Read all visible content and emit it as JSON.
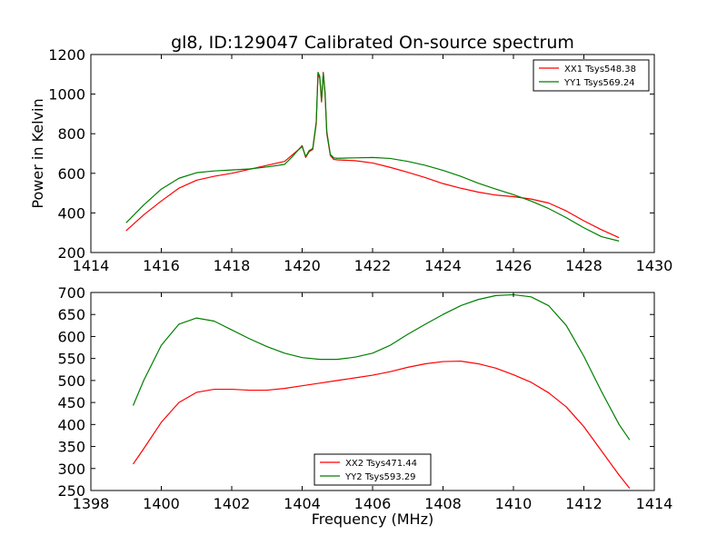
{
  "title": "gl8, ID:129047 Calibrated On-source spectrum",
  "colors": {
    "red": "#ff0000",
    "green": "#007f00"
  },
  "chart_data": [
    {
      "type": "line",
      "ylabel": "Power in Kelvin",
      "xlim": [
        1414,
        1430
      ],
      "ylim": [
        200,
        1200
      ],
      "xticks": [
        1414,
        1416,
        1418,
        1420,
        1422,
        1424,
        1426,
        1428,
        1430
      ],
      "yticks": [
        200,
        400,
        600,
        800,
        1000,
        1200
      ],
      "legend": "top-right",
      "series": [
        {
          "name": "XX1 Tsys548.38",
          "color": "#ff0000",
          "x": [
            1415.0,
            1415.5,
            1416.0,
            1416.5,
            1417.0,
            1417.5,
            1418.0,
            1418.5,
            1419.0,
            1419.5,
            1419.7,
            1419.9,
            1420.0,
            1420.1,
            1420.2,
            1420.3,
            1420.4,
            1420.45,
            1420.5,
            1420.55,
            1420.6,
            1420.65,
            1420.7,
            1420.8,
            1420.9,
            1421.0,
            1421.5,
            1422.0,
            1422.5,
            1423.0,
            1423.5,
            1424.0,
            1424.5,
            1425.0,
            1425.5,
            1426.0,
            1426.5,
            1427.0,
            1427.5,
            1428.0,
            1428.5,
            1429.0
          ],
          "y": [
            310,
            390,
            460,
            525,
            565,
            585,
            600,
            620,
            640,
            660,
            690,
            720,
            740,
            680,
            710,
            720,
            850,
            1100,
            1080,
            960,
            1110,
            1000,
            800,
            690,
            670,
            668,
            664,
            652,
            630,
            605,
            578,
            548,
            525,
            505,
            490,
            482,
            470,
            450,
            410,
            360,
            315,
            275
          ]
        },
        {
          "name": "YY1 Tsys569.24",
          "color": "#007f00",
          "x": [
            1415.0,
            1415.5,
            1416.0,
            1416.5,
            1417.0,
            1417.5,
            1418.0,
            1418.5,
            1419.0,
            1419.5,
            1419.7,
            1419.9,
            1420.0,
            1420.1,
            1420.2,
            1420.3,
            1420.4,
            1420.45,
            1420.5,
            1420.55,
            1420.6,
            1420.65,
            1420.7,
            1420.8,
            1420.9,
            1421.0,
            1421.5,
            1422.0,
            1422.5,
            1423.0,
            1423.5,
            1424.0,
            1424.5,
            1425.0,
            1425.5,
            1426.0,
            1426.5,
            1427.0,
            1427.5,
            1428.0,
            1428.5,
            1429.0
          ],
          "y": [
            350,
            440,
            520,
            575,
            603,
            612,
            617,
            622,
            632,
            645,
            680,
            720,
            735,
            685,
            715,
            725,
            860,
            1110,
            1090,
            970,
            1105,
            1010,
            810,
            695,
            678,
            676,
            678,
            680,
            675,
            660,
            640,
            615,
            585,
            550,
            520,
            492,
            460,
            422,
            376,
            325,
            280,
            258
          ]
        }
      ]
    },
    {
      "type": "line",
      "xlabel": "Frequency (MHz)",
      "xlim": [
        1398,
        1414
      ],
      "ylim": [
        250,
        700
      ],
      "xticks": [
        1398,
        1400,
        1402,
        1404,
        1406,
        1408,
        1410,
        1412,
        1414
      ],
      "yticks": [
        250,
        300,
        350,
        400,
        450,
        500,
        550,
        600,
        650,
        700
      ],
      "legend": "bottom-center",
      "series": [
        {
          "name": "XX2 Tsys471.44",
          "color": "#ff0000",
          "x": [
            1399.2,
            1399.5,
            1400.0,
            1400.5,
            1401.0,
            1401.5,
            1402.0,
            1402.5,
            1403.0,
            1403.5,
            1404.0,
            1404.5,
            1405.0,
            1405.5,
            1406.0,
            1406.5,
            1407.0,
            1407.5,
            1408.0,
            1408.5,
            1409.0,
            1409.5,
            1410.0,
            1410.5,
            1411.0,
            1411.5,
            1412.0,
            1412.5,
            1413.0,
            1413.3
          ],
          "y": [
            310,
            345,
            405,
            450,
            473,
            480,
            480,
            478,
            478,
            482,
            488,
            494,
            500,
            506,
            512,
            520,
            530,
            538,
            543,
            544,
            538,
            528,
            513,
            496,
            472,
            440,
            395,
            340,
            285,
            255
          ]
        },
        {
          "name": "YY2 Tsys593.29",
          "color": "#007f00",
          "x": [
            1399.2,
            1399.5,
            1400.0,
            1400.5,
            1401.0,
            1401.5,
            1402.0,
            1402.5,
            1403.0,
            1403.5,
            1404.0,
            1404.5,
            1405.0,
            1405.5,
            1406.0,
            1406.5,
            1407.0,
            1407.5,
            1408.0,
            1408.5,
            1409.0,
            1409.5,
            1410.0,
            1410.5,
            1411.0,
            1411.5,
            1412.0,
            1412.5,
            1413.0,
            1413.3
          ],
          "y": [
            443,
            500,
            580,
            628,
            642,
            635,
            615,
            595,
            577,
            562,
            552,
            548,
            548,
            553,
            562,
            580,
            605,
            628,
            650,
            670,
            684,
            693,
            695,
            690,
            670,
            625,
            555,
            475,
            400,
            365
          ]
        }
      ]
    }
  ]
}
